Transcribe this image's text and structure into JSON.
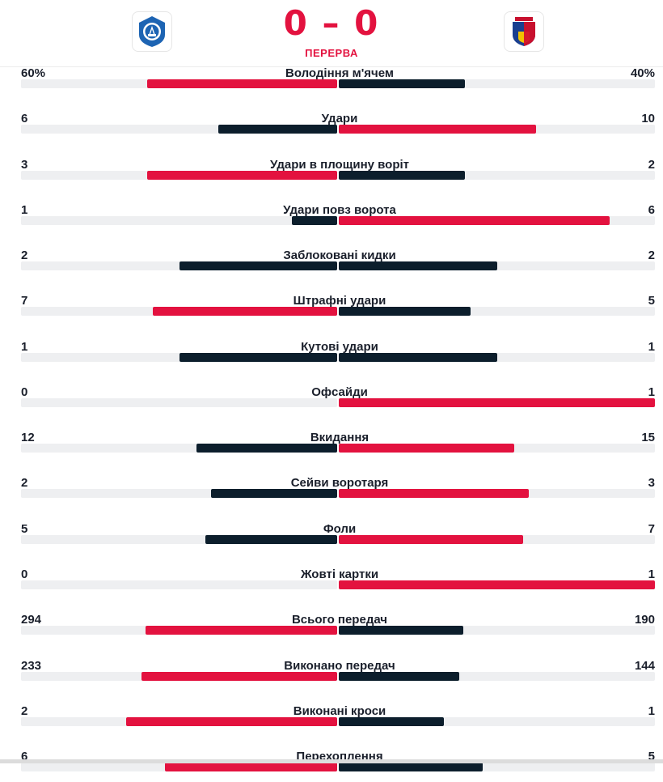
{
  "match": {
    "score": "0 – 0",
    "status": "ПЕРЕРВА",
    "home_logo": "dynamo-kyiv-logo-icon",
    "away_logo": "viktoria-plzen-logo-icon"
  },
  "colors": {
    "accent": "#e3123f",
    "dark": "#0c1e2c",
    "track": "#eeeff1"
  },
  "stats": [
    {
      "label": "Володіння м'ячем",
      "home": "60%",
      "away": "40%",
      "home_share": 0.6,
      "away_share": 0.4
    },
    {
      "label": "Удари",
      "home": "6",
      "away": "10",
      "home_share": 0.375,
      "away_share": 0.625
    },
    {
      "label": "Удари в площину воріт",
      "home": "3",
      "away": "2",
      "home_share": 0.6,
      "away_share": 0.4
    },
    {
      "label": "Удари повз ворота",
      "home": "1",
      "away": "6",
      "home_share": 0.143,
      "away_share": 0.857
    },
    {
      "label": "Заблоковані кидки",
      "home": "2",
      "away": "2",
      "home_share": 0.5,
      "away_share": 0.5
    },
    {
      "label": "Штрафні удари",
      "home": "7",
      "away": "5",
      "home_share": 0.583,
      "away_share": 0.417
    },
    {
      "label": "Кутові удари",
      "home": "1",
      "away": "1",
      "home_share": 0.5,
      "away_share": 0.5
    },
    {
      "label": "Офсайди",
      "home": "0",
      "away": "1",
      "home_share": 0.0,
      "away_share": 1.0
    },
    {
      "label": "Вкидання",
      "home": "12",
      "away": "15",
      "home_share": 0.444,
      "away_share": 0.556
    },
    {
      "label": "Сейви воротаря",
      "home": "2",
      "away": "3",
      "home_share": 0.4,
      "away_share": 0.6
    },
    {
      "label": "Фоли",
      "home": "5",
      "away": "7",
      "home_share": 0.417,
      "away_share": 0.583
    },
    {
      "label": "Жовті картки",
      "home": "0",
      "away": "1",
      "home_share": 0.0,
      "away_share": 1.0
    },
    {
      "label": "Всього передач",
      "home": "294",
      "away": "190",
      "home_share": 0.607,
      "away_share": 0.393
    },
    {
      "label": "Виконано передач",
      "home": "233",
      "away": "144",
      "home_share": 0.618,
      "away_share": 0.382
    },
    {
      "label": "Виконані кроси",
      "home": "2",
      "away": "1",
      "home_share": 0.667,
      "away_share": 0.333
    },
    {
      "label": "Перехоплення",
      "home": "6",
      "away": "5",
      "home_share": 0.545,
      "away_share": 0.455
    }
  ]
}
